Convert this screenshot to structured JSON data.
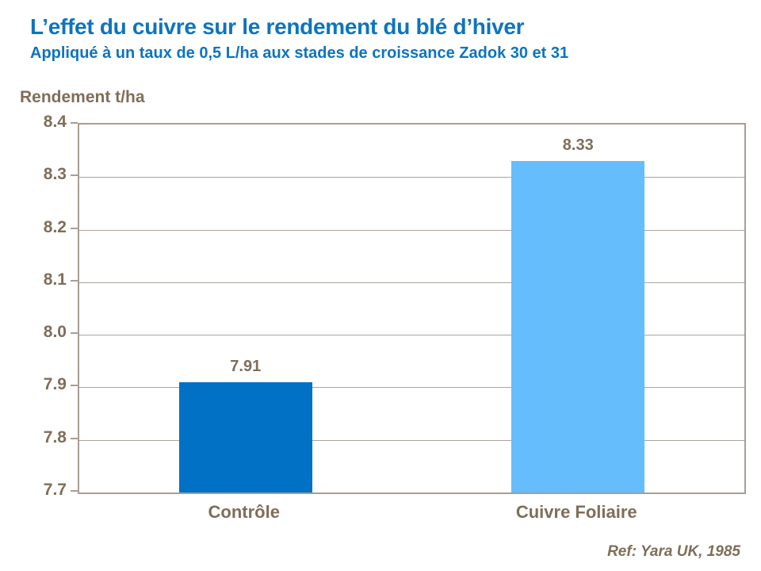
{
  "header": {
    "title": "L’effet du cuivre sur le rendement du blé d’hiver",
    "subtitle": "Appliqué à un taux de 0,5 L/ha aux stades de croissance Zadok 30 et 31"
  },
  "footer": {
    "reference": "Ref: Yara UK, 1985"
  },
  "colors": {
    "title_blue": "#0e74bd",
    "text_brown": "#7f6e58",
    "axis_frame": "#a89e92",
    "gridline": "#aca49c",
    "bar_controle": "#0071c5",
    "bar_cuivre_foliaire": "#66bdfb"
  },
  "chart_data": {
    "type": "bar",
    "title": "L’effet du cuivre sur le rendement du blé d’hiver",
    "subtitle": "Appliqué à un taux de 0,5 L/ha aux stades de croissance Zadok 30 et 31",
    "xlabel": "",
    "ylabel": "Rendement t/ha",
    "categories": [
      "Contrôle",
      "Cuivre Foliaire"
    ],
    "values": [
      7.91,
      8.33
    ],
    "value_labels": [
      "7.91",
      "8.33"
    ],
    "bar_colors": [
      "#0071c5",
      "#66bdfb"
    ],
    "ylim": [
      7.7,
      8.4
    ],
    "ytick_interval": 0.1,
    "ytick_labels": [
      "8.4",
      "8.3",
      "8.2",
      "8.1",
      "8.0",
      "7.9",
      "7.8",
      "7.7"
    ],
    "grid": true,
    "legend_position": "none",
    "source": "Ref: Yara UK, 1985"
  }
}
